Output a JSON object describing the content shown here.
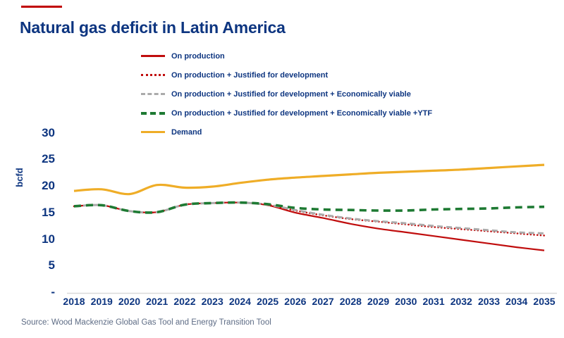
{
  "page": {
    "title": "Natural gas deficit in Latin America",
    "source": "Source: Wood Mackenzie Global Gas Tool and Energy Transition Tool",
    "accent_color": "#C00000",
    "title_color": "#0D3580",
    "axis_text_color": "#0D3580",
    "source_text_color": "#5E6C85"
  },
  "chart_data": {
    "type": "line",
    "title": "Natural gas deficit in Latin America",
    "xlabel": "",
    "ylabel": "bcfd",
    "ylim": [
      0,
      30
    ],
    "ytick_values": [
      30,
      25,
      20,
      15,
      10,
      5,
      0
    ],
    "ytick_labels": [
      "30",
      "25",
      "20",
      "15",
      "10",
      "5",
      "-"
    ],
    "grid": false,
    "legend_position": "top-center",
    "x": [
      2018,
      2019,
      2020,
      2021,
      2022,
      2023,
      2024,
      2025,
      2026,
      2027,
      2028,
      2029,
      2030,
      2031,
      2032,
      2033,
      2034,
      2035
    ],
    "series": [
      {
        "id": "on-production",
        "name": "On production",
        "color": "#C00D0D",
        "line_style": "solid",
        "stroke_width": 2.2,
        "dash": "",
        "legend_thickness": 3,
        "values": [
          16.1,
          16.3,
          15.2,
          15.0,
          16.4,
          16.7,
          16.8,
          16.3,
          14.9,
          13.9,
          12.8,
          11.9,
          11.2,
          10.5,
          9.8,
          9.1,
          8.4,
          7.8
        ]
      },
      {
        "id": "justified",
        "name": "On production + Justified for development",
        "color": "#C00D0D",
        "line_style": "dotted",
        "stroke_width": 2.6,
        "dash": "0.1 4.6",
        "legend_thickness": 3,
        "values": [
          16.1,
          16.3,
          15.2,
          15.0,
          16.4,
          16.7,
          16.8,
          16.4,
          15.3,
          14.4,
          13.7,
          13.2,
          12.7,
          12.2,
          11.8,
          11.4,
          11.0,
          10.6
        ]
      },
      {
        "id": "economically-viable",
        "name": "On production + Justified for development + Economically viable",
        "color": "#ABABAB",
        "line_style": "dashed",
        "stroke_width": 3,
        "dash": "8 5",
        "legend_thickness": 3,
        "values": [
          16.1,
          16.3,
          15.2,
          15.0,
          16.4,
          16.7,
          16.8,
          16.4,
          15.4,
          14.5,
          13.8,
          13.3,
          12.9,
          12.4,
          12.0,
          11.6,
          11.2,
          11.0
        ]
      },
      {
        "id": "ytf",
        "name": "On production + Justified for development + Economically viable +YTF",
        "color": "#1E7A33",
        "line_style": "dashed",
        "stroke_width": 3.6,
        "dash": "10 7",
        "legend_thickness": 4,
        "values": [
          16.1,
          16.3,
          15.2,
          15.0,
          16.4,
          16.7,
          16.8,
          16.5,
          15.8,
          15.5,
          15.4,
          15.3,
          15.3,
          15.5,
          15.6,
          15.7,
          15.9,
          16.0
        ]
      },
      {
        "id": "demand",
        "name": "Demand",
        "color": "#EFAD27",
        "line_style": "solid",
        "stroke_width": 3.2,
        "dash": "",
        "legend_thickness": 3,
        "values": [
          19.0,
          19.3,
          18.4,
          20.1,
          19.6,
          19.8,
          20.5,
          21.1,
          21.5,
          21.8,
          22.1,
          22.4,
          22.6,
          22.8,
          23.0,
          23.3,
          23.6,
          23.9
        ]
      }
    ]
  }
}
